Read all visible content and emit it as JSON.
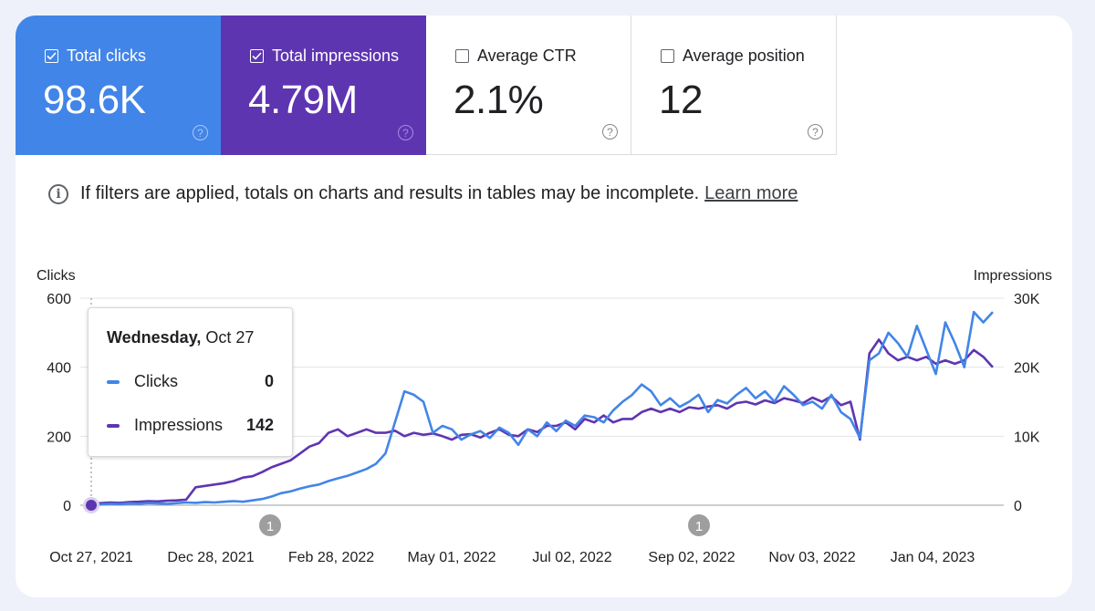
{
  "metrics": [
    {
      "label": "Total clicks",
      "value": "98.6K",
      "checked": true,
      "color": "#4285e8"
    },
    {
      "label": "Total impressions",
      "value": "4.79M",
      "checked": true,
      "color": "#5e35b1"
    },
    {
      "label": "Average CTR",
      "value": "2.1%",
      "checked": false
    },
    {
      "label": "Average position",
      "value": "12",
      "checked": false
    }
  ],
  "help_glyph": "?",
  "notice": {
    "icon": "info-icon",
    "text": "If filters are applied, totals on charts and results in tables may be incomplete.",
    "link": "Learn more"
  },
  "tooltip": {
    "day": "Wednesday,",
    "date": "Oct 27",
    "rows": [
      {
        "name": "Clicks",
        "value": "0",
        "color": "#4285e8"
      },
      {
        "name": "Impressions",
        "value": "142",
        "color": "#5e35b1"
      }
    ]
  },
  "chart_data": {
    "type": "line",
    "title": "",
    "xlabel": "",
    "ylabel": "Clicks",
    "y2label": "Impressions",
    "ylim": [
      0,
      600
    ],
    "y2lim": [
      0,
      30000
    ],
    "yticks": [
      "0",
      "200",
      "400",
      "600"
    ],
    "y2ticks": [
      "0",
      "10K",
      "20K",
      "30K"
    ],
    "grid": true,
    "xticks": [
      "Oct 27, 2021",
      "Dec 28, 2021",
      "Feb 28, 2022",
      "May 01, 2022",
      "Jul 02, 2022",
      "Sep 02, 2022",
      "Nov 03, 2022",
      "Jan 04, 2023"
    ],
    "annotations": [
      {
        "label": "1",
        "date": "Jan 2022"
      },
      {
        "label": "1",
        "date": "Sep 2022"
      }
    ],
    "x_weeks_start": "Oct 27, 2021",
    "series": [
      {
        "name": "Clicks",
        "axis": "left",
        "color": "#4285e8",
        "values": [
          0,
          2,
          4,
          3,
          5,
          4,
          6,
          5,
          4,
          6,
          8,
          7,
          9,
          8,
          10,
          12,
          10,
          14,
          18,
          25,
          35,
          40,
          48,
          55,
          60,
          70,
          78,
          85,
          95,
          105,
          120,
          150,
          240,
          330,
          320,
          300,
          210,
          230,
          220,
          190,
          205,
          215,
          195,
          225,
          210,
          175,
          220,
          200,
          240,
          215,
          245,
          230,
          260,
          255,
          240,
          275,
          300,
          320,
          350,
          330,
          290,
          310,
          285,
          300,
          320,
          270,
          305,
          295,
          320,
          340,
          310,
          330,
          300,
          345,
          320,
          290,
          300,
          280,
          320,
          270,
          250,
          195,
          420,
          440,
          500,
          470,
          430,
          520,
          450,
          380,
          530,
          470,
          400,
          560,
          530,
          560
        ]
      },
      {
        "name": "Impressions",
        "axis": "right",
        "color": "#5e35b1",
        "values": [
          142,
          300,
          400,
          350,
          450,
          500,
          600,
          550,
          650,
          700,
          800,
          2600,
          2800,
          3000,
          3200,
          3500,
          4000,
          4200,
          4800,
          5500,
          6000,
          6500,
          7500,
          8500,
          9000,
          10500,
          11000,
          10000,
          10500,
          11000,
          10500,
          10500,
          10800,
          10000,
          10500,
          10200,
          10400,
          10000,
          9500,
          10200,
          10300,
          9800,
          10500,
          11000,
          10200,
          10000,
          11000,
          10600,
          11500,
          11500,
          12000,
          11000,
          12500,
          12000,
          13000,
          12000,
          12500,
          12500,
          13500,
          14000,
          13500,
          14000,
          13500,
          14200,
          14000,
          14300,
          14500,
          14000,
          14800,
          15000,
          14600,
          15200,
          14800,
          15500,
          15200,
          14800,
          15600,
          15000,
          15800,
          14500,
          15000,
          9500,
          22000,
          24000,
          22000,
          21000,
          21500,
          21000,
          21500,
          20500,
          21000,
          20500,
          21000,
          22500,
          21500,
          20000
        ]
      }
    ]
  }
}
